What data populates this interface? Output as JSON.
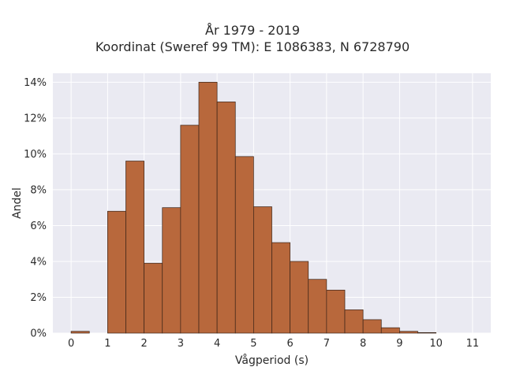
{
  "chart_data": {
    "type": "bar",
    "title": "År 1979 - 2019",
    "subtitle": "Koordinat (Sweref 99 TM): E 1086383, N 6728790",
    "xlabel": "Vågperiod (s)",
    "ylabel": "Andel",
    "xlim": [
      -0.5,
      11.5
    ],
    "ylim": [
      0,
      14.5
    ],
    "x_ticks": [
      0,
      1,
      2,
      3,
      4,
      5,
      6,
      7,
      8,
      9,
      10,
      11
    ],
    "y_ticks": [
      0,
      2,
      4,
      6,
      8,
      10,
      12,
      14
    ],
    "y_tick_labels": [
      "0%",
      "2%",
      "4%",
      "6%",
      "8%",
      "10%",
      "12%",
      "14%"
    ],
    "bin_width": 0.5,
    "bins": [
      {
        "start": 0.0,
        "end": 0.5,
        "value": 0.1
      },
      {
        "start": 0.5,
        "end": 1.0,
        "value": 0.0
      },
      {
        "start": 1.0,
        "end": 1.5,
        "value": 6.8
      },
      {
        "start": 1.5,
        "end": 2.0,
        "value": 9.6
      },
      {
        "start": 2.0,
        "end": 2.5,
        "value": 3.9
      },
      {
        "start": 2.5,
        "end": 3.0,
        "value": 7.0
      },
      {
        "start": 3.0,
        "end": 3.5,
        "value": 11.6
      },
      {
        "start": 3.5,
        "end": 4.0,
        "value": 14.0
      },
      {
        "start": 4.0,
        "end": 4.5,
        "value": 12.9
      },
      {
        "start": 4.5,
        "end": 5.0,
        "value": 9.85
      },
      {
        "start": 5.0,
        "end": 5.5,
        "value": 7.05
      },
      {
        "start": 5.5,
        "end": 6.0,
        "value": 5.05
      },
      {
        "start": 6.0,
        "end": 6.5,
        "value": 4.0
      },
      {
        "start": 6.5,
        "end": 7.0,
        "value": 3.0
      },
      {
        "start": 7.0,
        "end": 7.5,
        "value": 2.4
      },
      {
        "start": 7.5,
        "end": 8.0,
        "value": 1.3
      },
      {
        "start": 8.0,
        "end": 8.5,
        "value": 0.75
      },
      {
        "start": 8.5,
        "end": 9.0,
        "value": 0.3
      },
      {
        "start": 9.0,
        "end": 9.5,
        "value": 0.1
      },
      {
        "start": 9.5,
        "end": 10.0,
        "value": 0.03
      }
    ],
    "grid": true,
    "legend": "none",
    "colors": {
      "bar_fill": "#b8683c",
      "bar_stroke": "#3a2418",
      "plot_background": "#eaeaf2",
      "grid": "#ffffff"
    }
  }
}
